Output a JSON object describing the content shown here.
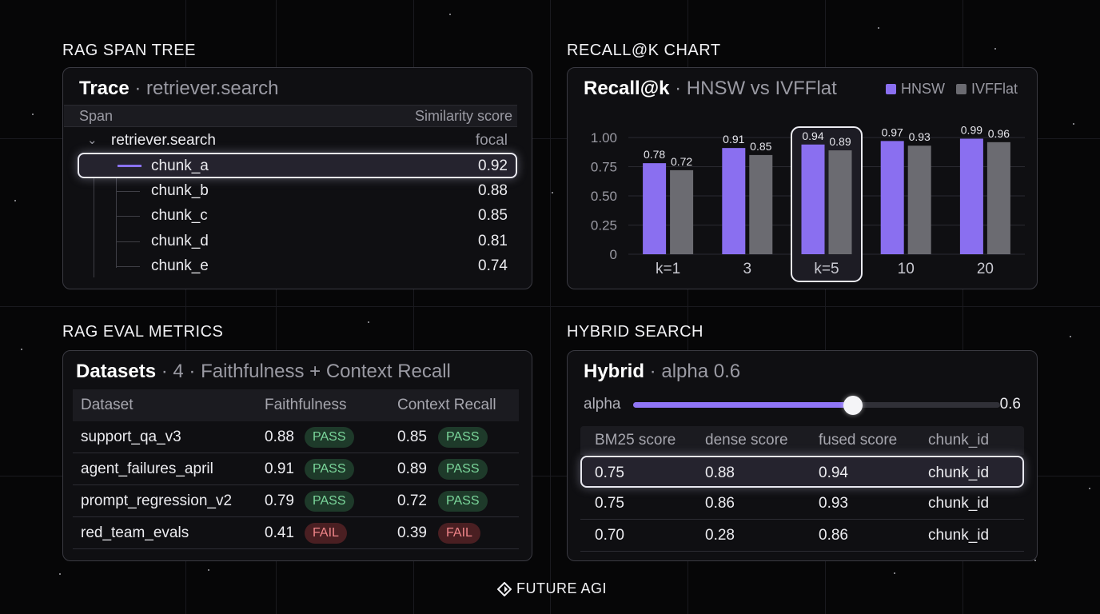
{
  "sections": {
    "span_tree": "RAG SPAN TREE",
    "recall_chart": "RECALL@K CHART",
    "eval_metrics": "RAG EVAL METRICS",
    "hybrid_search": "HYBRID SEARCH"
  },
  "trace": {
    "title": "Trace",
    "subtitle": " · retriever.search",
    "col_span": "Span",
    "col_score": "Similarity score",
    "root": {
      "name": "retriever.search",
      "score": "focal"
    },
    "children": [
      {
        "name": "chunk_a",
        "score": "0.92"
      },
      {
        "name": "chunk_b",
        "score": "0.88"
      },
      {
        "name": "chunk_c",
        "score": "0.85"
      },
      {
        "name": "chunk_d",
        "score": "0.81"
      },
      {
        "name": "chunk_e",
        "score": "0.74"
      }
    ],
    "highlighted_index": 0
  },
  "recall": {
    "title": "Recall@k",
    "subtitle": " · HNSW vs IVFFlat",
    "legend": [
      "HNSW",
      "IVFFlat"
    ]
  },
  "chart_data": {
    "type": "bar",
    "title": "Recall@k · HNSW vs IVFFlat",
    "categories": [
      "k=1",
      "3",
      "k=5",
      "10",
      "20"
    ],
    "series": [
      {
        "name": "HNSW",
        "values": [
          0.78,
          0.91,
          0.94,
          0.97,
          0.99
        ],
        "color": "#8a6ff0"
      },
      {
        "name": "IVFFlat",
        "values": [
          0.72,
          0.85,
          0.89,
          0.93,
          0.96
        ],
        "color": "#6b6b71"
      }
    ],
    "yticks": [
      "0",
      "0.25",
      "0.50",
      "0.75",
      "1.00"
    ],
    "ylim": [
      0,
      1.0
    ],
    "highlighted_category": "k=5",
    "grid": true,
    "legend_position": "top-right"
  },
  "datasets": {
    "title": "Datasets",
    "subtitle": " · 4 · Faithfulness + Context Recall",
    "columns": [
      "Dataset",
      "Faithfulness",
      "Context Recall"
    ],
    "rows": [
      {
        "name": "support_qa_v3",
        "faith": "0.88",
        "faith_status": "PASS",
        "recall": "0.85",
        "recall_status": "PASS"
      },
      {
        "name": "agent_failures_april",
        "faith": "0.91",
        "faith_status": "PASS",
        "recall": "0.89",
        "recall_status": "PASS"
      },
      {
        "name": "prompt_regression_v2",
        "faith": "0.79",
        "faith_status": "PASS",
        "recall": "0.72",
        "recall_status": "PASS"
      },
      {
        "name": "red_team_evals",
        "faith": "0.41",
        "faith_status": "FAIL",
        "recall": "0.39",
        "recall_status": "FAIL"
      }
    ]
  },
  "hybrid": {
    "title": "Hybrid",
    "subtitle": " · alpha 0.6",
    "slider_label": "alpha",
    "alpha": 0.6,
    "alpha_text": "0.6",
    "columns": [
      "BM25 score",
      "dense score",
      "fused score",
      "chunk_id"
    ],
    "rows": [
      [
        "0.75",
        "0.88",
        "0.94",
        "chunk_id"
      ],
      [
        "0.75",
        "0.86",
        "0.93",
        "chunk_id"
      ],
      [
        "0.70",
        "0.28",
        "0.86",
        "chunk_id"
      ]
    ],
    "highlighted_index": 0
  },
  "brand": {
    "name": "FUTURE AGI"
  },
  "colors": {
    "accent": "#8a6ff0",
    "secondary": "#6b6b71",
    "pass": "#7bd69b",
    "fail": "#f08589"
  }
}
